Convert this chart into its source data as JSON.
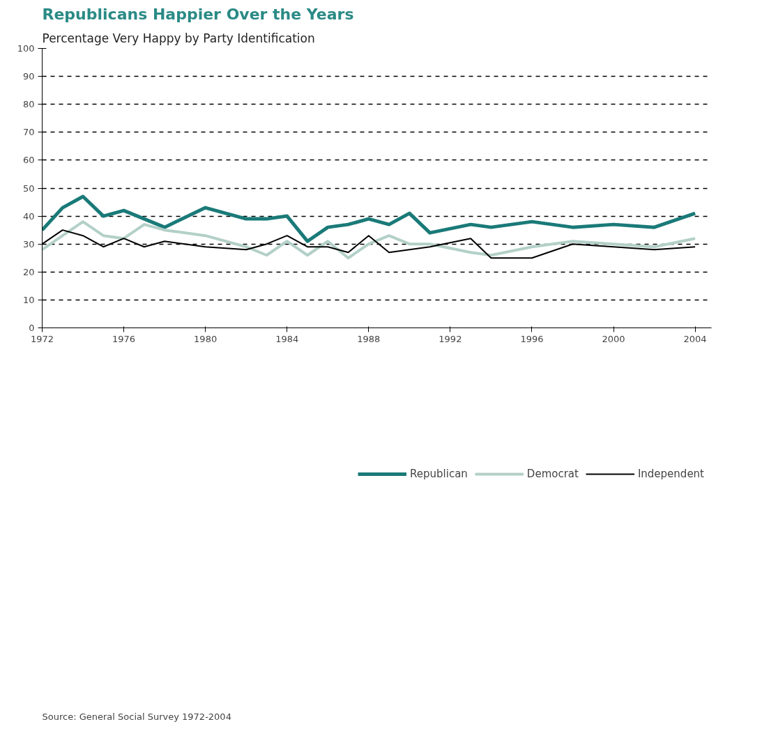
{
  "chart_data": {
    "type": "line",
    "title": "Republicans Happier Over the Years",
    "subtitle": "Percentage Very Happy by Party Identification",
    "x": [
      1972,
      1973,
      1974,
      1975,
      1976,
      1977,
      1978,
      1980,
      1982,
      1983,
      1984,
      1985,
      1986,
      1987,
      1988,
      1989,
      1990,
      1991,
      1993,
      1994,
      1996,
      1998,
      2000,
      2002,
      2004
    ],
    "series": [
      {
        "name": "Republican",
        "color": "#1a7a78",
        "values": [
          35,
          43,
          47,
          40,
          42,
          39,
          36,
          43,
          39,
          39,
          40,
          31,
          36,
          37,
          39,
          37,
          41,
          34,
          37,
          36,
          38,
          36,
          37,
          36,
          41
        ]
      },
      {
        "name": "Democrat",
        "color": "#b3d0c8",
        "values": [
          28,
          33,
          38,
          33,
          32,
          37,
          35,
          33,
          29,
          26,
          31,
          26,
          31,
          25,
          30,
          33,
          30,
          30,
          27,
          26,
          29,
          31,
          30,
          29,
          32
        ]
      },
      {
        "name": "Independent",
        "color": "#000000",
        "values": [
          30,
          35,
          33,
          29,
          32,
          29,
          31,
          29,
          28,
          30,
          33,
          29,
          29,
          27,
          33,
          27,
          28,
          29,
          32,
          25,
          25,
          30,
          29,
          28,
          29
        ]
      }
    ],
    "xlim": [
      1972,
      2004.8
    ],
    "xticks": [
      1972,
      1976,
      1980,
      1984,
      1988,
      1992,
      1996,
      2000,
      2004
    ],
    "ylim": [
      0,
      100
    ],
    "yticks": [
      0,
      10,
      20,
      30,
      40,
      50,
      60,
      70,
      80,
      90,
      100
    ],
    "grid": "y",
    "legend": "bottom",
    "line_style": "solid",
    "annotations": [
      "Source: General Social Survey 1972-2004"
    ]
  }
}
